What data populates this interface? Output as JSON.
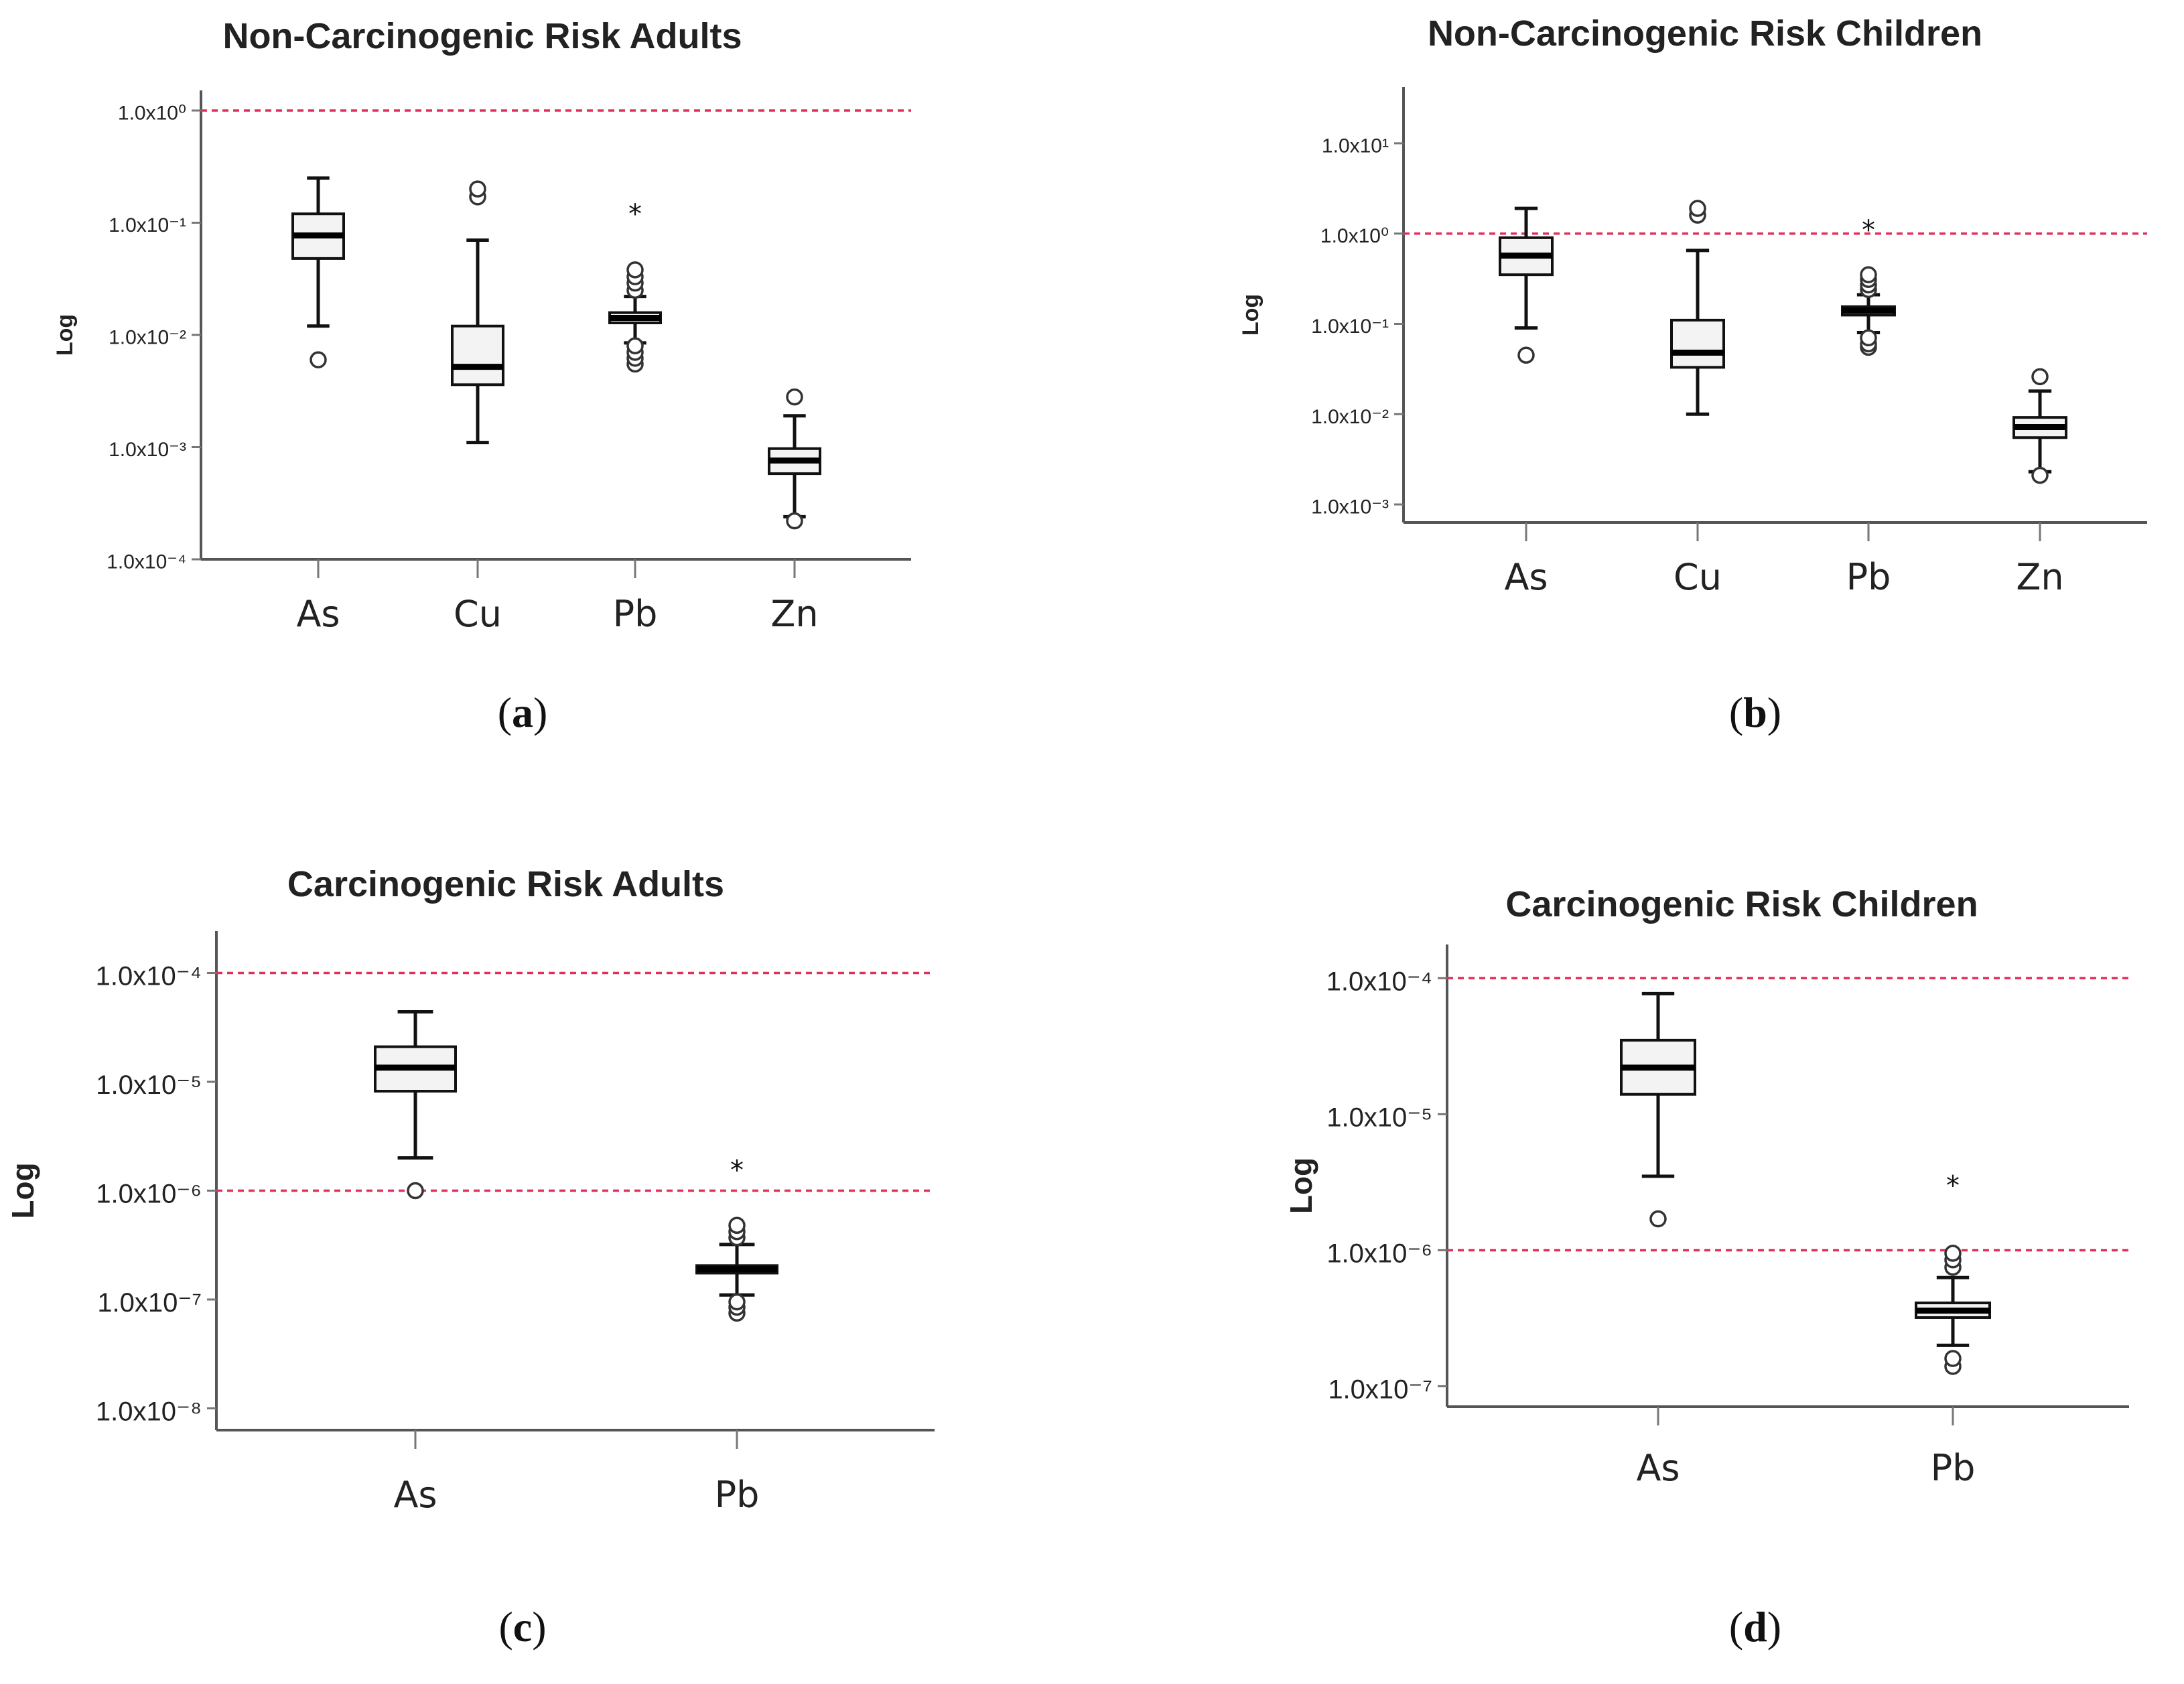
{
  "figure": {
    "tick_prefix": "1.0x10",
    "chart_data": [
      {
        "id": "a",
        "type": "box",
        "caption": "a",
        "title": "Non-Carcinogenic Risk Adults",
        "ylabel": "Log",
        "yscale": "log10",
        "ylim_exp": [
          -4,
          0
        ],
        "ytick_exponents": [
          0,
          -1,
          -2,
          -3,
          -4
        ],
        "reference_lines": [
          1.0
        ],
        "categories": [
          "As",
          "Cu",
          "Pb",
          "Zn"
        ],
        "boxes": [
          {
            "name": "As",
            "q1": 0.048,
            "median": 0.077,
            "q3": 0.12,
            "whisker_low": 0.012,
            "whisker_high": 0.25,
            "outliers": [
              0.006
            ],
            "extremes": []
          },
          {
            "name": "Cu",
            "q1": 0.0036,
            "median": 0.0052,
            "q3": 0.012,
            "whisker_low": 0.0011,
            "whisker_high": 0.07,
            "outliers": [
              0.17,
              0.2
            ],
            "extremes": []
          },
          {
            "name": "Pb",
            "q1": 0.0128,
            "median": 0.0142,
            "q3": 0.0158,
            "whisker_low": 0.0085,
            "whisker_high": 0.022,
            "outliers": [
              0.0055,
              0.0062,
              0.007,
              0.008,
              0.025,
              0.029,
              0.033,
              0.038
            ],
            "extremes": [
              0.12
            ]
          },
          {
            "name": "Zn",
            "q1": 0.00058,
            "median": 0.00076,
            "q3": 0.00097,
            "whisker_low": 0.00024,
            "whisker_high": 0.0019,
            "outliers": [
              0.00022,
              0.0028
            ],
            "extremes": []
          }
        ]
      },
      {
        "id": "b",
        "type": "box",
        "caption": "b",
        "title": "Non-Carcinogenic Risk Children",
        "ylabel": "Log",
        "yscale": "log10",
        "ylim_exp": [
          -3.2,
          1.4
        ],
        "ytick_exponents": [
          1,
          0,
          -1,
          -2,
          -3
        ],
        "reference_lines": [
          1.0
        ],
        "categories": [
          "As",
          "Cu",
          "Pb",
          "Zn"
        ],
        "boxes": [
          {
            "name": "As",
            "q1": 0.35,
            "median": 0.57,
            "q3": 0.9,
            "whisker_low": 0.09,
            "whisker_high": 1.9,
            "outliers": [
              0.045
            ],
            "extremes": []
          },
          {
            "name": "Cu",
            "q1": 0.033,
            "median": 0.048,
            "q3": 0.11,
            "whisker_low": 0.01,
            "whisker_high": 0.65,
            "outliers": [
              1.6,
              1.9
            ],
            "extremes": []
          },
          {
            "name": "Pb",
            "q1": 0.125,
            "median": 0.14,
            "q3": 0.155,
            "whisker_low": 0.08,
            "whisker_high": 0.21,
            "outliers": [
              0.055,
              0.06,
              0.07,
              0.24,
              0.27,
              0.31,
              0.35
            ],
            "extremes": [
              1.1
            ]
          },
          {
            "name": "Zn",
            "q1": 0.0055,
            "median": 0.0072,
            "q3": 0.0092,
            "whisker_low": 0.0023,
            "whisker_high": 0.018,
            "outliers": [
              0.0021,
              0.026
            ],
            "extremes": []
          }
        ]
      },
      {
        "id": "c",
        "type": "box",
        "caption": "c",
        "title": "Carcinogenic Risk Adults",
        "ylabel": "Log",
        "yscale": "log10",
        "ylim_exp": [
          -8.2,
          -3.8
        ],
        "ytick_exponents": [
          -4,
          -5,
          -6,
          -7,
          -8
        ],
        "reference_lines": [
          0.0001,
          1e-06
        ],
        "categories": [
          "As",
          "Pb"
        ],
        "boxes": [
          {
            "name": "As",
            "q1": 8.2e-06,
            "median": 1.35e-05,
            "q3": 2.1e-05,
            "whisker_low": 2e-06,
            "whisker_high": 4.4e-05,
            "outliers": [
              1e-06
            ],
            "extremes": []
          },
          {
            "name": "Pb",
            "q1": 1.75e-07,
            "median": 1.9e-07,
            "q3": 2.05e-07,
            "whisker_low": 1.1e-07,
            "whisker_high": 3.2e-07,
            "outliers": [
              7.5e-08,
              8.5e-08,
              9.5e-08,
              3.7e-07,
              4.2e-07,
              4.8e-07
            ],
            "extremes": [
              1.55e-06
            ]
          }
        ]
      },
      {
        "id": "d",
        "type": "box",
        "caption": "d",
        "title": "Carcinogenic Risk Children",
        "ylabel": "Log",
        "yscale": "log10",
        "ylim_exp": [
          -7.15,
          -3.9
        ],
        "ytick_exponents": [
          -4,
          -5,
          -6,
          -7
        ],
        "reference_lines": [
          0.0001,
          1e-06
        ],
        "categories": [
          "As",
          "Pb"
        ],
        "boxes": [
          {
            "name": "As",
            "q1": 1.4e-05,
            "median": 2.2e-05,
            "q3": 3.5e-05,
            "whisker_low": 3.5e-06,
            "whisker_high": 7.7e-05,
            "outliers": [
              1.7e-06
            ],
            "extremes": []
          },
          {
            "name": "Pb",
            "q1": 3.2e-07,
            "median": 3.6e-07,
            "q3": 4.1e-07,
            "whisker_low": 2e-07,
            "whisker_high": 6.3e-07,
            "outliers": [
              1.4e-07,
              1.6e-07,
              7.5e-07,
              8.5e-07,
              9.5e-07
            ],
            "extremes": [
              3e-06
            ]
          }
        ]
      }
    ]
  }
}
